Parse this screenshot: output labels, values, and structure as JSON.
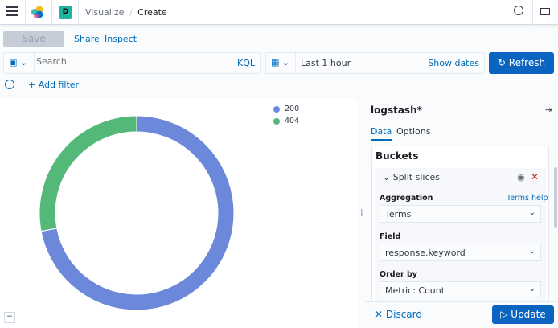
{
  "header": {
    "breadcrumbs": [
      "Visualize",
      "Create"
    ],
    "space_initial": "D",
    "space_color": "#20b3a2"
  },
  "toolbar": {
    "save": "Save",
    "share": "Share",
    "inspect": "Inspect"
  },
  "query": {
    "placeholder": "Search",
    "language": "KQL",
    "time_range": "Last 1 hour",
    "show_dates": "Show dates",
    "refresh": "Refresh",
    "add_filter": "+ Add filter"
  },
  "chart_data": {
    "type": "pie",
    "donut": true,
    "categories": [
      "200",
      "404"
    ],
    "values": [
      72,
      28
    ],
    "colors": [
      "#6c88db",
      "#54b978"
    ],
    "legend": "top-right"
  },
  "panel": {
    "index": "logstash*",
    "tabs": [
      "Data",
      "Options"
    ],
    "section": "Buckets",
    "bucket_title": "Split slices",
    "aggregation_label": "Aggregation",
    "aggregation_help": "Terms help",
    "aggregation_value": "Terms",
    "field_label": "Field",
    "field_value": "response.keyword",
    "order_label": "Order by",
    "order_value": "Metric: Count",
    "discard": "Discard",
    "update": "Update"
  }
}
